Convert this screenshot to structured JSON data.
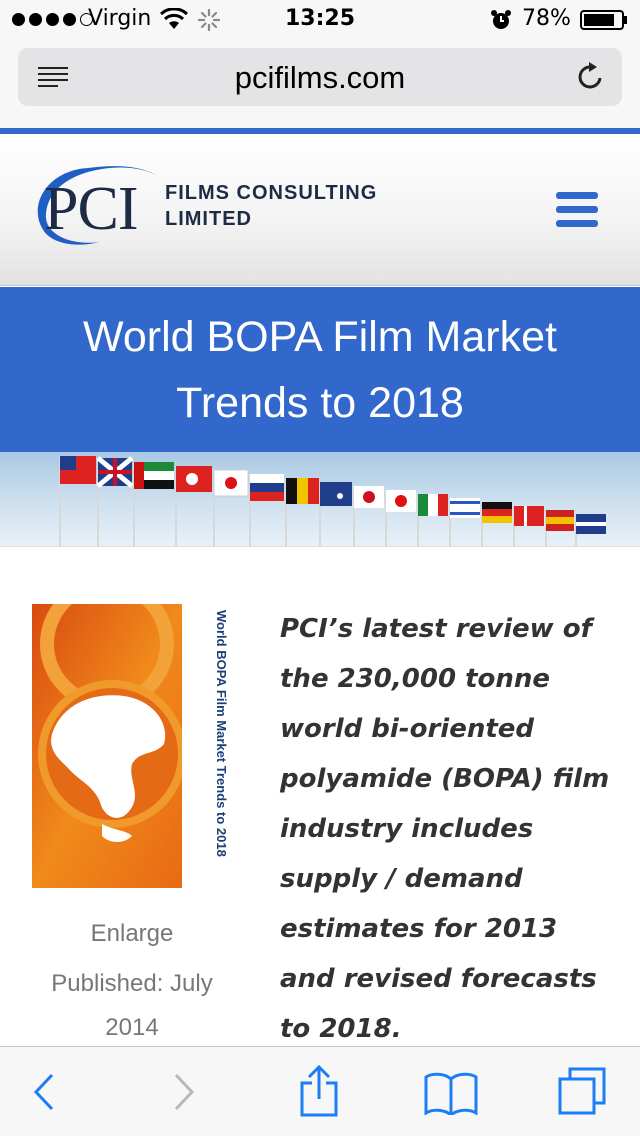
{
  "status_bar": {
    "carrier": "Virgin",
    "time": "13:25",
    "battery": "78%",
    "icons": [
      "signal-dots",
      "wifi-icon",
      "activity-spinner-icon",
      "alarm-icon",
      "battery-icon"
    ]
  },
  "browser": {
    "url": "pcifilms.com",
    "icons": [
      "reader-icon",
      "reload-icon"
    ]
  },
  "site": {
    "logo_text": "PCI",
    "logo_line1": "FILMS CONSULTING",
    "logo_line2": "LIMITED",
    "accent_color": "#3268cc",
    "menu_icon": "hamburger-menu-icon"
  },
  "page": {
    "title": "World BOPA Film Market Trends to 2018",
    "cover_title": "World BOPA Film Market Trends to 2018",
    "enlarge": "Enlarge",
    "published": "Published: July 2014",
    "intro": "PCI’s latest review of the 230,000 tonne world bi-oriented polyamide (BOPA) film industry includes supply / demand estimates for 2013 and revised forecasts to 2018."
  },
  "toolbar": {
    "icons": [
      "back-icon",
      "forward-icon",
      "share-icon",
      "bookmarks-icon",
      "tabs-icon"
    ],
    "icon_color": "#1c7ef5",
    "disabled_color": "#b8b8b8"
  }
}
